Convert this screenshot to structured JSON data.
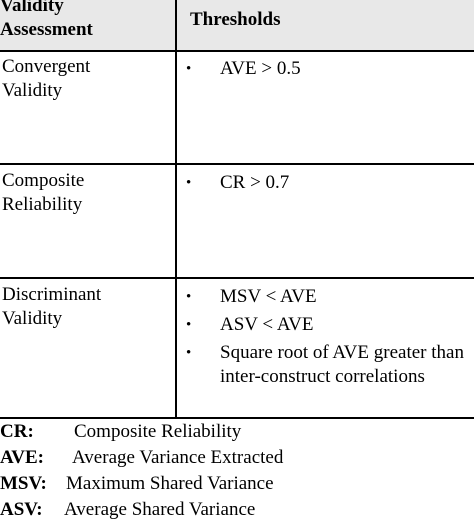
{
  "table": {
    "header": {
      "col1": "Validity\nAssessment",
      "col2": "Thresholds"
    },
    "rows": [
      {
        "criterion": "Convergent\nValidity",
        "thresholds": [
          "AVE > 0.5"
        ]
      },
      {
        "criterion": "Composite\nReliability",
        "thresholds": [
          "CR > 0.7"
        ]
      },
      {
        "criterion": "Discriminant\nValidity",
        "thresholds": [
          "MSV < AVE",
          "ASV < AVE",
          "Square root of AVE greater than inter-construct correlations"
        ]
      }
    ],
    "bullet_symbol": "•"
  },
  "legend": [
    {
      "abbr": "CR:",
      "desc": "Composite Reliability"
    },
    {
      "abbr": "AVE:",
      "desc": "Average Variance Extracted"
    },
    {
      "abbr": "MSV:",
      "desc": "Maximum Shared Variance"
    },
    {
      "abbr": "ASV:",
      "desc": "Average Shared Variance"
    }
  ]
}
